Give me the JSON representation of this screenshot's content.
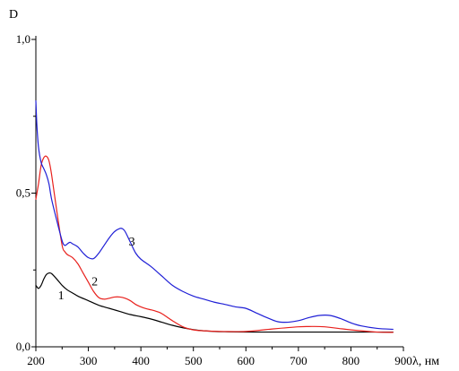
{
  "chart_data": {
    "type": "line",
    "title": "",
    "xlabel": "λ, нм",
    "ylabel": "D",
    "xlim": [
      200,
      900
    ],
    "ylim": [
      0.0,
      1.0
    ],
    "x_ticks": [
      200,
      300,
      400,
      500,
      600,
      700,
      800,
      900
    ],
    "x_tick_labels": [
      "200",
      "300",
      "400",
      "500",
      "600",
      "700",
      "800",
      "900"
    ],
    "y_ticks": [
      0.0,
      0.5,
      1.0
    ],
    "y_tick_labels": [
      "0,0",
      "0,5",
      "1,0"
    ],
    "grid": false,
    "legend": "none",
    "series": [
      {
        "name": "1",
        "color": "#000000",
        "x": [
          200,
          205,
          210,
          215,
          220,
          225,
          230,
          240,
          250,
          260,
          270,
          280,
          300,
          320,
          340,
          360,
          380,
          400,
          420,
          440,
          460,
          480,
          500,
          520,
          540,
          560,
          600,
          650,
          700,
          750,
          800,
          850,
          880
        ],
        "y": [
          0.2,
          0.19,
          0.2,
          0.22,
          0.235,
          0.24,
          0.238,
          0.22,
          0.2,
          0.185,
          0.175,
          0.165,
          0.15,
          0.135,
          0.125,
          0.115,
          0.105,
          0.098,
          0.09,
          0.08,
          0.07,
          0.062,
          0.056,
          0.052,
          0.05,
          0.049,
          0.048,
          0.048,
          0.048,
          0.048,
          0.048,
          0.048,
          0.048
        ]
      },
      {
        "name": "2",
        "color": "#e8201c",
        "x": [
          200,
          205,
          210,
          215,
          220,
          225,
          230,
          240,
          250,
          255,
          260,
          270,
          280,
          290,
          300,
          310,
          320,
          330,
          340,
          350,
          360,
          370,
          380,
          390,
          400,
          410,
          420,
          430,
          440,
          460,
          480,
          500,
          520,
          550,
          600,
          650,
          700,
          720,
          750,
          800,
          850,
          880
        ],
        "y": [
          0.48,
          0.53,
          0.59,
          0.615,
          0.62,
          0.605,
          0.56,
          0.44,
          0.33,
          0.31,
          0.3,
          0.29,
          0.27,
          0.24,
          0.21,
          0.18,
          0.16,
          0.155,
          0.158,
          0.162,
          0.162,
          0.158,
          0.15,
          0.138,
          0.13,
          0.124,
          0.12,
          0.115,
          0.108,
          0.085,
          0.065,
          0.055,
          0.052,
          0.05,
          0.05,
          0.058,
          0.065,
          0.066,
          0.065,
          0.055,
          0.048,
          0.047
        ]
      },
      {
        "name": "3",
        "color": "#1f1fd6",
        "x": [
          200,
          202,
          205,
          210,
          215,
          220,
          225,
          230,
          240,
          250,
          255,
          260,
          265,
          270,
          280,
          290,
          300,
          310,
          320,
          330,
          340,
          350,
          360,
          365,
          370,
          380,
          390,
          400,
          420,
          440,
          460,
          480,
          500,
          520,
          540,
          560,
          580,
          600,
          620,
          640,
          660,
          680,
          700,
          720,
          740,
          760,
          780,
          800,
          820,
          850,
          880
        ],
        "y": [
          0.8,
          0.72,
          0.65,
          0.6,
          0.58,
          0.56,
          0.53,
          0.48,
          0.41,
          0.345,
          0.33,
          0.335,
          0.34,
          0.335,
          0.325,
          0.305,
          0.29,
          0.287,
          0.305,
          0.33,
          0.355,
          0.375,
          0.385,
          0.384,
          0.375,
          0.34,
          0.305,
          0.285,
          0.26,
          0.23,
          0.2,
          0.18,
          0.165,
          0.155,
          0.145,
          0.138,
          0.13,
          0.125,
          0.11,
          0.095,
          0.082,
          0.08,
          0.085,
          0.095,
          0.102,
          0.102,
          0.092,
          0.078,
          0.068,
          0.06,
          0.057
        ]
      }
    ],
    "annotations": [
      {
        "text": "1",
        "x": 248,
        "y": 0.155
      },
      {
        "text": "2",
        "x": 312,
        "y": 0.2
      },
      {
        "text": "3",
        "x": 383,
        "y": 0.33
      }
    ]
  }
}
